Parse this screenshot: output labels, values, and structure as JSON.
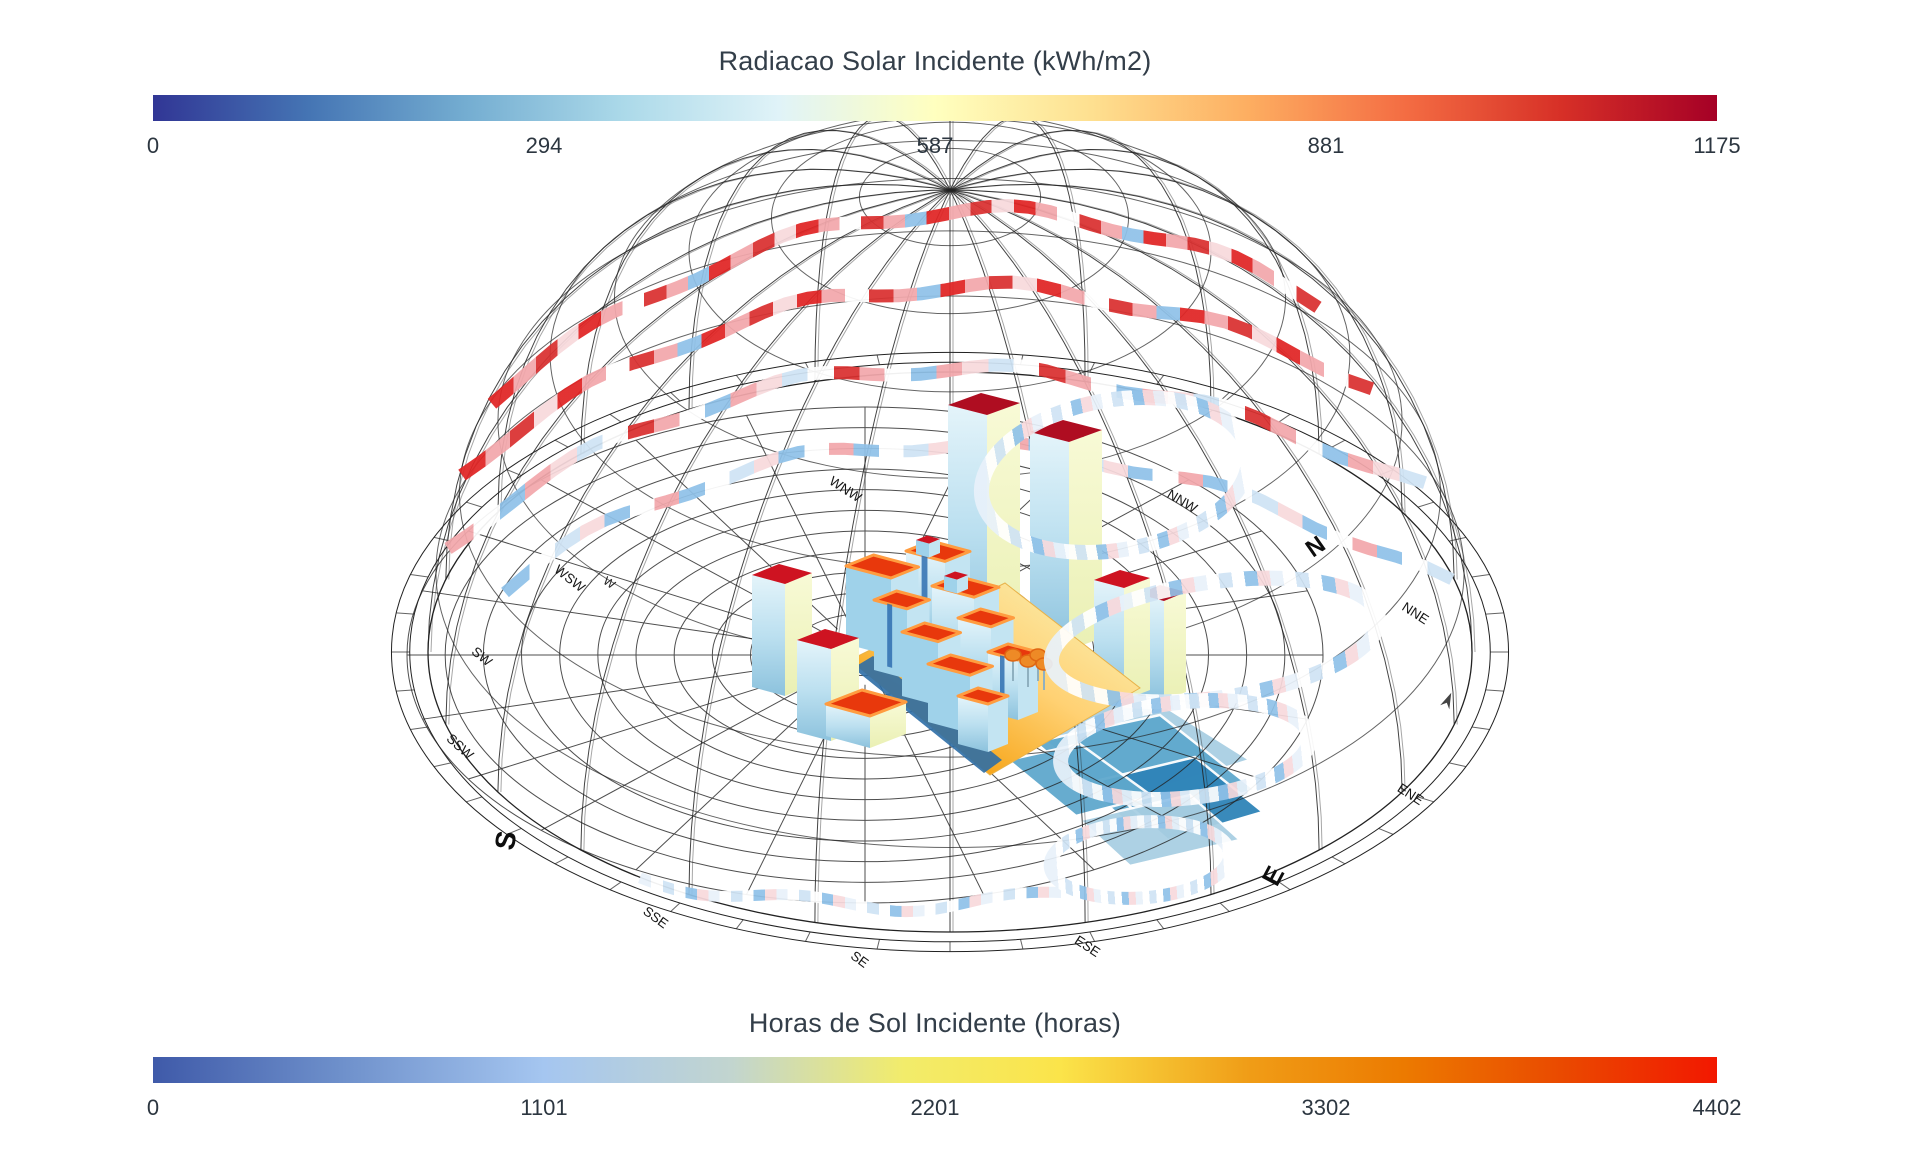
{
  "legend_top": {
    "title": "Radiacao Solar Incidente (kWh/m2)",
    "ticks": [
      "0",
      "294",
      "587",
      "881",
      "1175"
    ],
    "range": [
      0,
      1175
    ],
    "colormap": [
      "#313695",
      "#4575B4",
      "#74ADD1",
      "#ABD9E9",
      "#E0F3F8",
      "#FFFFBF",
      "#FEE090",
      "#FDAE61",
      "#F46D43",
      "#D73027",
      "#A50026"
    ]
  },
  "legend_bottom": {
    "title": "Horas de Sol Incidente (horas)",
    "ticks": [
      "0",
      "1101",
      "2201",
      "3302",
      "4402"
    ],
    "range": [
      0,
      4402
    ],
    "colormap": [
      "#3F5AA9",
      "#6E90CB",
      "#A5C6F0",
      "#C2D5CF",
      "#F2EC6B",
      "#FBE44A",
      "#F09D17",
      "#EC7A00",
      "#EA4A00",
      "#F21800"
    ]
  },
  "compass": {
    "labels": [
      {
        "text": "N"
      },
      {
        "text": "NNE"
      },
      {
        "text": "ENE"
      },
      {
        "text": "E"
      },
      {
        "text": "ESE"
      },
      {
        "text": "SE"
      },
      {
        "text": "SSE"
      },
      {
        "text": "S"
      },
      {
        "text": "SSW"
      },
      {
        "text": "SW"
      },
      {
        "text": "WSW"
      },
      {
        "text": "W"
      },
      {
        "text": "WNW"
      },
      {
        "text": "NNW"
      }
    ]
  },
  "palette": {
    "wire": "#222222",
    "roof_red_dark": "#AF0D21",
    "roof_red": "#CE1321",
    "roof_orange": "#E8380C",
    "roof_glow": "#FF9C40",
    "face_blue_hi": "#DFF2FA",
    "face_blue_lo": "#8CC2DD",
    "face_cream_hi": "#F8FAD6",
    "face_cream_lo": "#EAF0B4",
    "slab_front": "#9FD2EA",
    "slab_side": "#C3E4F2",
    "slab_accent": "#2F6FB0",
    "patch_light": "#A9CFE3",
    "patch_mid": "#5FA8CD",
    "patch_dark": "#2F84B8",
    "canal_blue": "#2E6EA6",
    "plane_deep": "#EF7B10",
    "plane_mid": "#F7A81F",
    "plane_light": "#FFD173",
    "plane_pale": "#FDF3CF",
    "tree_canopy": "#EE8A26",
    "tree_stroke": "#E06612",
    "sun_red": "#E02424",
    "sun_red2": "#D93030",
    "sun_pink": "#F2A7AB",
    "sun_pink_pale": "#F7D9DC",
    "sun_blue": "#8FC1E8",
    "sun_blue_pale": "#CFE3F4",
    "sun_white": "#FFFFFF",
    "loop_pale": "#E8F1FA"
  },
  "chart_data": [
    {
      "type": "heatmap",
      "title": "Radiacao Solar Incidente (kWh/m2)",
      "legend_position": "top",
      "scale_ticks": [
        0,
        294,
        587,
        881,
        1175
      ],
      "range": [
        0,
        1175
      ],
      "colormap": "RdYlBu reversed (blue=low, red=high)",
      "applied_to": "3D building surfaces and sun-path arcs of a sky dome"
    },
    {
      "type": "heatmap",
      "title": "Horas de Sol Incidente (horas)",
      "legend_position": "bottom",
      "scale_ticks": [
        0,
        1101,
        2201,
        3302,
        4402
      ],
      "range": [
        0,
        4402
      ],
      "colormap": "blue-yellow-orange-red (blue=low, red=high)",
      "applied_to": "ground plane radiation/sun-hours patches"
    },
    {
      "type": "scatter",
      "title": "Sun-path dome compass",
      "categories": [
        "N",
        "NNE",
        "ENE",
        "E",
        "ESE",
        "SE",
        "SSE",
        "S",
        "SSW",
        "SW",
        "WSW",
        "W",
        "WNW",
        "NNW"
      ]
    }
  ]
}
